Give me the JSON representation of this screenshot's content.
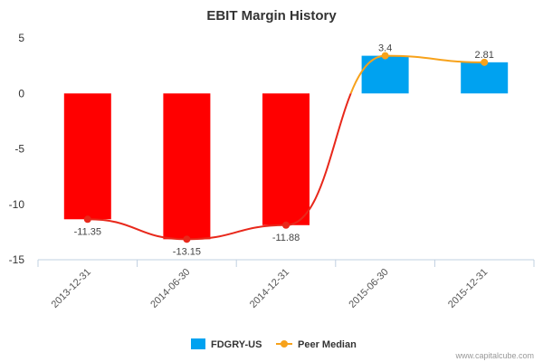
{
  "chart_data": {
    "type": "bar",
    "title": "EBIT Margin History",
    "categories": [
      "2013-12-31",
      "2014-06-30",
      "2014-12-31",
      "2015-06-30",
      "2015-12-31"
    ],
    "series": [
      {
        "name": "FDGRY-US",
        "type": "bar",
        "values": [
          -11.35,
          -13.15,
          -11.88,
          3.4,
          2.81
        ],
        "color_positive": "#00a2f0",
        "color_negative": "#ff0000"
      },
      {
        "name": "Peer Median",
        "type": "line",
        "values": [
          -11.35,
          -13.15,
          -11.88,
          3.4,
          2.81
        ],
        "color": "#f7a21b",
        "color_below_zero": "#e8281b"
      }
    ],
    "data_labels": [
      "-11.35",
      "-13.15",
      "-11.88",
      "3.4",
      "2.81"
    ],
    "y_ticks": [
      5,
      0,
      -5,
      -10,
      -15
    ],
    "ylim": [
      -15,
      5
    ],
    "xlabel": "",
    "ylabel": "",
    "grid": false,
    "legend": "bottom-center"
  },
  "legend": {
    "bar_label": "FDGRY-US",
    "line_label": "Peer Median"
  },
  "credit": "www.capitalcube.com"
}
